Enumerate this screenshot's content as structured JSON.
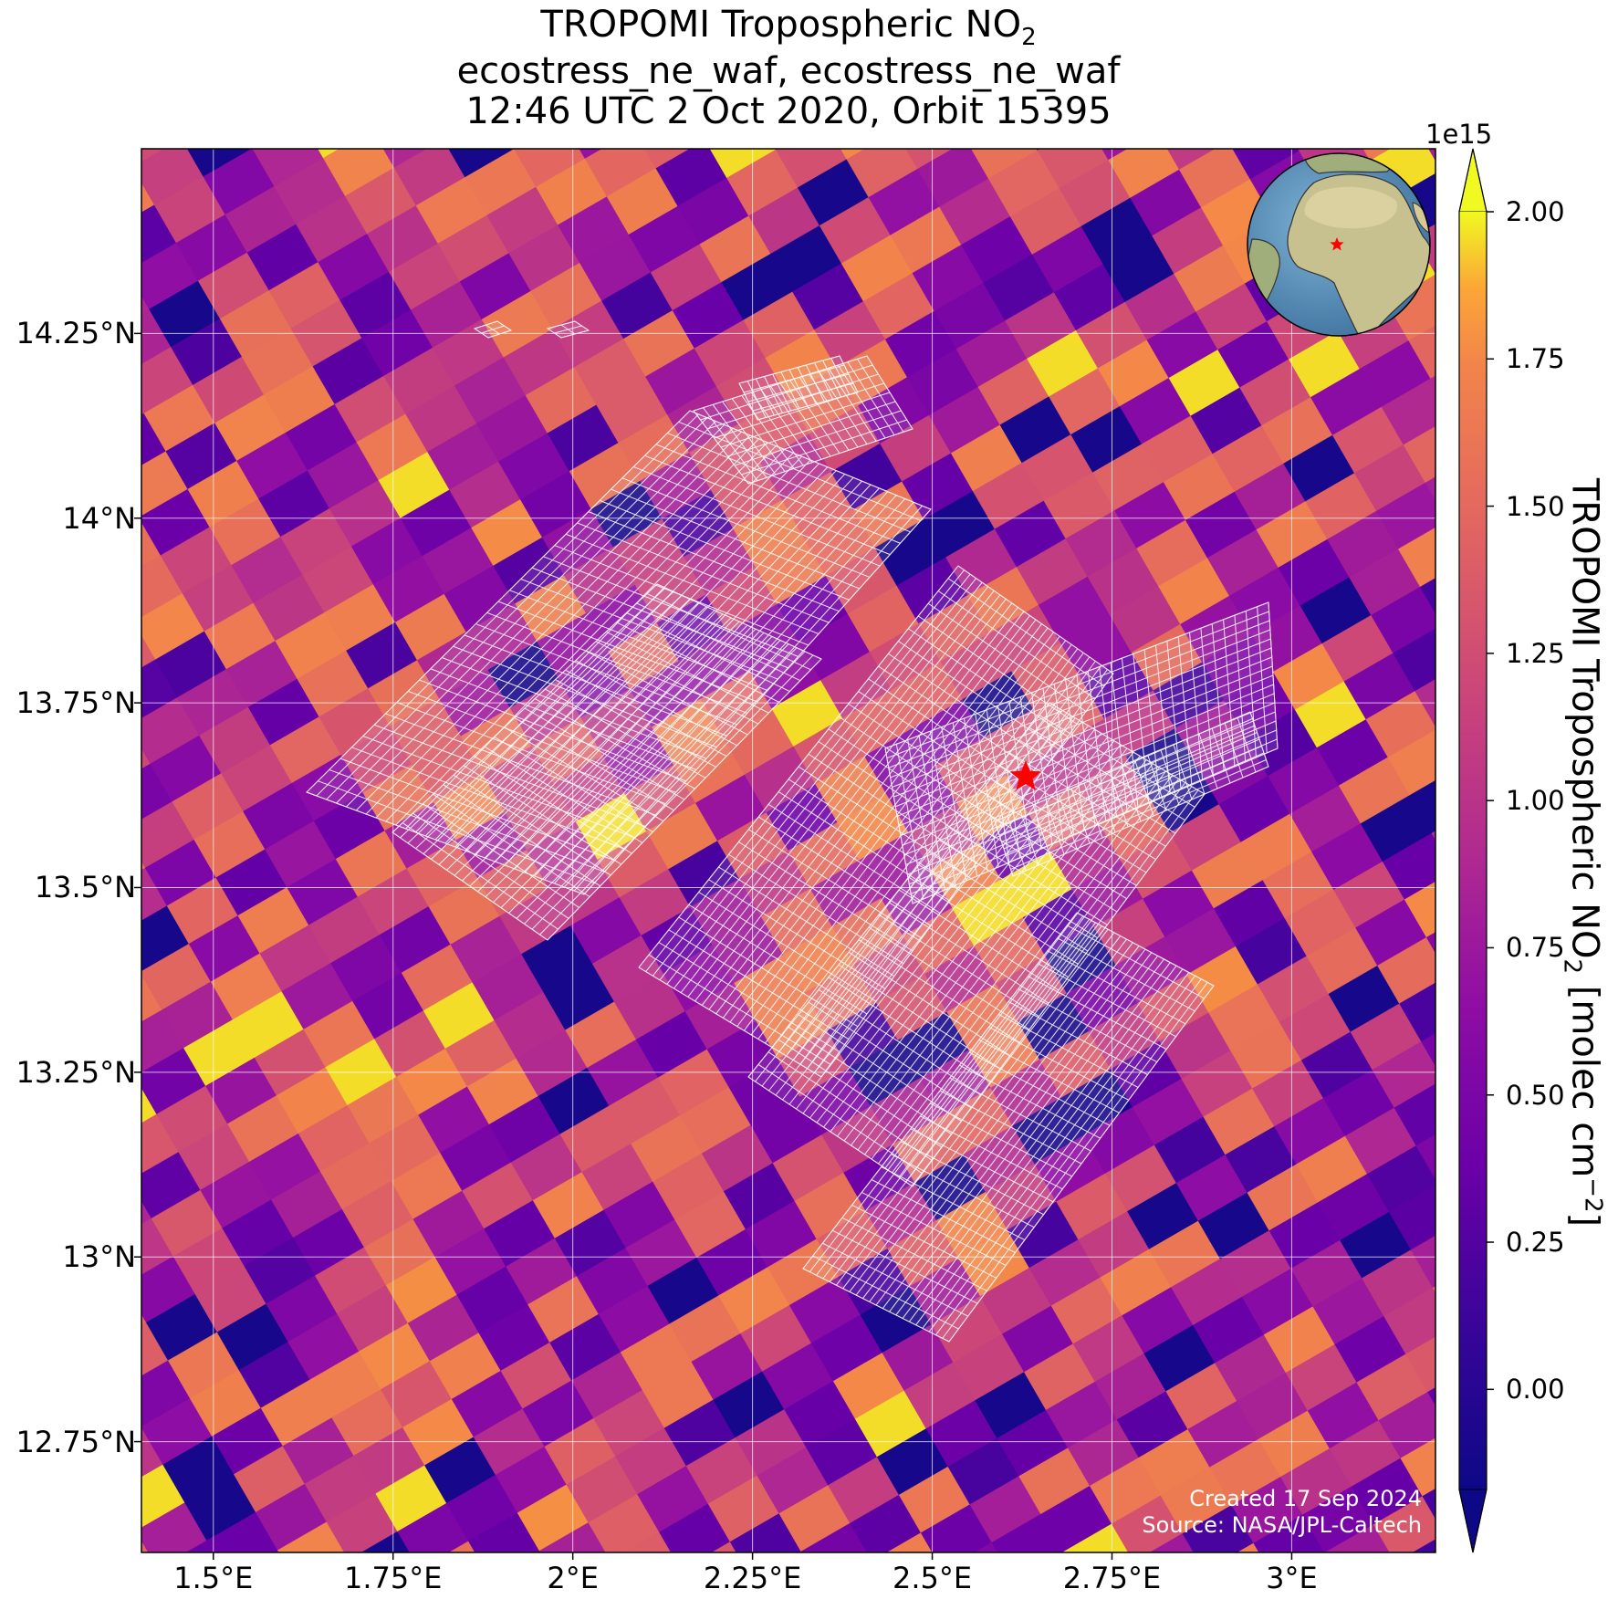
{
  "title": {
    "line1": "TROPOMI Tropospheric NO",
    "line1_subscript": "2",
    "line2": "ecostress_ne_waf, ecostress_ne_waf",
    "line3": "12:46 UTC 2 Oct 2020, Orbit 15395"
  },
  "map": {
    "lon_range": [
      1.4,
      3.2
    ],
    "lat_range": [
      12.6,
      14.5
    ],
    "lat_ticks": [
      "14.25°N",
      "14°N",
      "13.75°N",
      "13.5°N",
      "13.25°N",
      "13°N",
      "12.75°N"
    ],
    "lat_tick_values": [
      14.25,
      14.0,
      13.75,
      13.5,
      13.25,
      13.0,
      12.75
    ],
    "lon_ticks": [
      "1.5°E",
      "1.75°E",
      "2°E",
      "2.25°E",
      "2.5°E",
      "2.75°E",
      "3°E"
    ],
    "lon_tick_values": [
      1.5,
      1.75,
      2.0,
      2.25,
      2.5,
      2.75,
      3.0
    ],
    "gridlines": true,
    "colormap": "plasma",
    "target_marker": {
      "lon": 2.63,
      "lat": 13.65,
      "shape": "star",
      "color": "#ff0000"
    },
    "overlay": "ECOSTRESS footprint grid (white outline)",
    "inset_globe": {
      "position": "top-right",
      "marker_color": "#ff0000"
    }
  },
  "colorbar": {
    "exponent_label": "1e15",
    "ticks": [
      "2.00",
      "1.75",
      "1.50",
      "1.25",
      "1.00",
      "0.75",
      "0.50",
      "0.25",
      "0.00"
    ],
    "tick_values": [
      2.0,
      1.75,
      1.5,
      1.25,
      1.0,
      0.75,
      0.5,
      0.25,
      0.0
    ],
    "range": [
      -0.17,
      2.0
    ],
    "label": "TROPOMI Tropospheric NO",
    "label_subscript": "2",
    "label_units": "[molec cm",
    "label_units_superscript": "−2",
    "label_units_close": "]",
    "extend": "both"
  },
  "credits": {
    "created": "Created 17 Sep 2024",
    "source": "Source: NASA/JPL-Caltech"
  },
  "colors": {
    "low": "#0d0887",
    "mid": "#cc4778",
    "high": "#f0f921",
    "grid": "#ffffff",
    "marker": "#ff0000"
  }
}
